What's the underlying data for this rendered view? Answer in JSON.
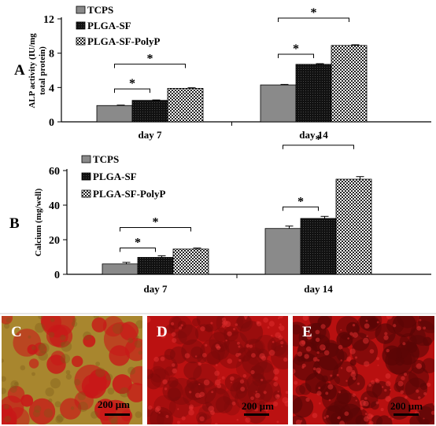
{
  "chart_data": [
    {
      "panel_label": "A",
      "type": "bar",
      "ylabel": "ALP activity (IU/mg total protein)",
      "ylabel_lines": [
        "ALP activity (IU/mg",
        "total protein)"
      ],
      "ylim": [
        0,
        12
      ],
      "yticks": [
        0,
        4,
        8,
        12
      ],
      "categories": [
        "day 7",
        "day 14"
      ],
      "series": [
        {
          "name": "TCPS",
          "values": [
            1.9,
            4.3
          ],
          "errors": [
            0.05,
            0.06
          ]
        },
        {
          "name": "PLGA-SF",
          "values": [
            2.5,
            6.7
          ],
          "errors": [
            0.05,
            0.08
          ]
        },
        {
          "name": "PLGA-SF-PolyP",
          "values": [
            3.9,
            8.9
          ],
          "errors": [
            0.07,
            0.08
          ]
        }
      ],
      "significance": [
        {
          "category": 0,
          "from": 0,
          "to": 1,
          "label": "*"
        },
        {
          "category": 0,
          "from": 0,
          "to": 2,
          "label": "*"
        },
        {
          "category": 1,
          "from": 0,
          "to": 1,
          "label": "*"
        },
        {
          "category": 1,
          "from": 0,
          "to": 2,
          "label": "*"
        }
      ],
      "legend_position": "top-left",
      "grid": false
    },
    {
      "panel_label": "B",
      "type": "bar",
      "ylabel": "Calcium (mg/well)",
      "ylim": [
        0,
        60
      ],
      "yticks": [
        0,
        20,
        40,
        60
      ],
      "categories": [
        "day 7",
        "day 14"
      ],
      "series": [
        {
          "name": "TCPS",
          "values": [
            6,
            26.5
          ],
          "errors": [
            0.9,
            1.4
          ]
        },
        {
          "name": "PLGA-SF",
          "values": [
            9.8,
            32.3
          ],
          "errors": [
            0.9,
            1.2
          ]
        },
        {
          "name": "PLGA-SF-PolyP",
          "values": [
            14.6,
            55
          ],
          "errors": [
            0.6,
            1.5
          ]
        }
      ],
      "significance": [
        {
          "category": 0,
          "from": 0,
          "to": 1,
          "label": "*"
        },
        {
          "category": 0,
          "from": 0,
          "to": 2,
          "label": "*"
        },
        {
          "category": 1,
          "from": 0,
          "to": 1,
          "label": "*"
        },
        {
          "category": 1,
          "from": 0,
          "to": 2,
          "label": "*"
        }
      ],
      "legend_position": "top-left",
      "grid": false
    }
  ],
  "series_colors": [
    "#8a8a8a",
    "#111111",
    "#ffffff"
  ],
  "micrographs": [
    {
      "label": "C",
      "scale_bar": "200 μm",
      "base_color": "#a8862e",
      "spot_color": "#c81818"
    },
    {
      "label": "D",
      "scale_bar": "200 μm",
      "base_color": "#bb1111",
      "spot_color": "#7a0a0a"
    },
    {
      "label": "E",
      "scale_bar": "200 μm",
      "base_color": "#b81010",
      "spot_color": "#5a0606"
    }
  ]
}
